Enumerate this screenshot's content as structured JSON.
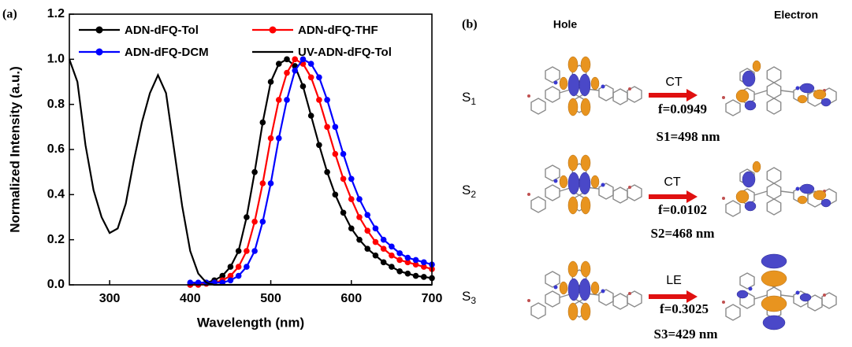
{
  "chart_data": {
    "type": "line",
    "panel_label": "(a)",
    "x_label": "Wavelength (nm)",
    "y_label": "Normalized Intensity (a.u.)",
    "x": [
      250,
      260,
      270,
      280,
      290,
      300,
      310,
      320,
      330,
      340,
      350,
      360,
      370,
      380,
      390,
      400,
      410,
      420,
      430,
      440,
      450,
      460,
      470,
      480,
      490,
      500,
      510,
      520,
      530,
      540,
      550,
      560,
      570,
      580,
      590,
      600,
      610,
      620,
      630,
      640,
      650,
      660,
      670,
      680,
      690,
      700
    ],
    "series": [
      {
        "name": "ADN-dFQ-Tol",
        "color": "#000000",
        "marker": true,
        "values": [
          null,
          null,
          null,
          null,
          null,
          null,
          null,
          null,
          null,
          null,
          null,
          null,
          null,
          null,
          null,
          0,
          0.005,
          0.01,
          0.02,
          0.04,
          0.08,
          0.15,
          0.3,
          0.5,
          0.72,
          0.9,
          0.98,
          1.0,
          0.97,
          0.88,
          0.75,
          0.62,
          0.5,
          0.4,
          0.32,
          0.25,
          0.2,
          0.16,
          0.13,
          0.1,
          0.08,
          0.06,
          0.05,
          0.04,
          0.035,
          0.03
        ]
      },
      {
        "name": "ADN-dFQ-THF",
        "color": "#ff0000",
        "marker": true,
        "values": [
          null,
          null,
          null,
          null,
          null,
          null,
          null,
          null,
          null,
          null,
          null,
          null,
          null,
          null,
          null,
          0,
          0,
          0.005,
          0.01,
          0.02,
          0.04,
          0.08,
          0.15,
          0.28,
          0.45,
          0.65,
          0.82,
          0.94,
          1.0,
          0.98,
          0.92,
          0.82,
          0.7,
          0.58,
          0.47,
          0.38,
          0.3,
          0.24,
          0.19,
          0.16,
          0.13,
          0.11,
          0.1,
          0.09,
          0.08,
          0.07
        ]
      },
      {
        "name": "ADN-dFQ-DCM",
        "color": "#0000ff",
        "marker": true,
        "values": [
          null,
          null,
          null,
          null,
          null,
          null,
          null,
          null,
          null,
          null,
          null,
          null,
          null,
          null,
          null,
          0.01,
          0.01,
          0.01,
          0.01,
          0.01,
          0.02,
          0.04,
          0.08,
          0.15,
          0.28,
          0.45,
          0.65,
          0.82,
          0.95,
          1.0,
          0.98,
          0.92,
          0.82,
          0.7,
          0.58,
          0.47,
          0.38,
          0.31,
          0.25,
          0.2,
          0.17,
          0.14,
          0.12,
          0.11,
          0.1,
          0.09
        ]
      },
      {
        "name": "UV-ADN-dFQ-Tol",
        "color": "#000000",
        "marker": false,
        "values": [
          1.0,
          0.9,
          0.62,
          0.42,
          0.3,
          0.23,
          0.25,
          0.36,
          0.55,
          0.72,
          0.85,
          0.93,
          0.85,
          0.6,
          0.35,
          0.15,
          0.05,
          0.01,
          0,
          0,
          0,
          0,
          0,
          0,
          0,
          0,
          0,
          0,
          0,
          0,
          0,
          0,
          0,
          0,
          0,
          0,
          0,
          0,
          0,
          0,
          0,
          0,
          0,
          0,
          0,
          0
        ]
      }
    ],
    "xlim": [
      250,
      700
    ],
    "xticks": [
      300,
      400,
      500,
      600,
      700
    ],
    "ylim": [
      0,
      1.2
    ],
    "yticks": [
      {
        "value": 0,
        "label": "0.0"
      },
      {
        "value": 0.2,
        "label": "0.2"
      },
      {
        "value": 0.4,
        "label": "0.4"
      },
      {
        "value": 0.6,
        "label": "0.6"
      },
      {
        "value": 0.8,
        "label": "0.8"
      },
      {
        "value": 1,
        "label": "1.0"
      },
      {
        "value": 1.2,
        "label": "1.2"
      }
    ],
    "grid": false,
    "legend": "top"
  },
  "diagram": {
    "panel_label": "(b)",
    "headers": {
      "hole": "Hole",
      "electron": "Electron"
    },
    "states": [
      {
        "symbol": "S",
        "index": "1",
        "transition": "CT",
        "oscillator_strength": "f=0.0949",
        "excitation": "S1=498 nm"
      },
      {
        "symbol": "S",
        "index": "2",
        "transition": "CT",
        "oscillator_strength": "f=0.0102",
        "excitation": "S2=468 nm"
      },
      {
        "symbol": "S",
        "index": "3",
        "transition": "LE",
        "oscillator_strength": "f=0.3025",
        "excitation": "S3=429 nm"
      }
    ]
  }
}
